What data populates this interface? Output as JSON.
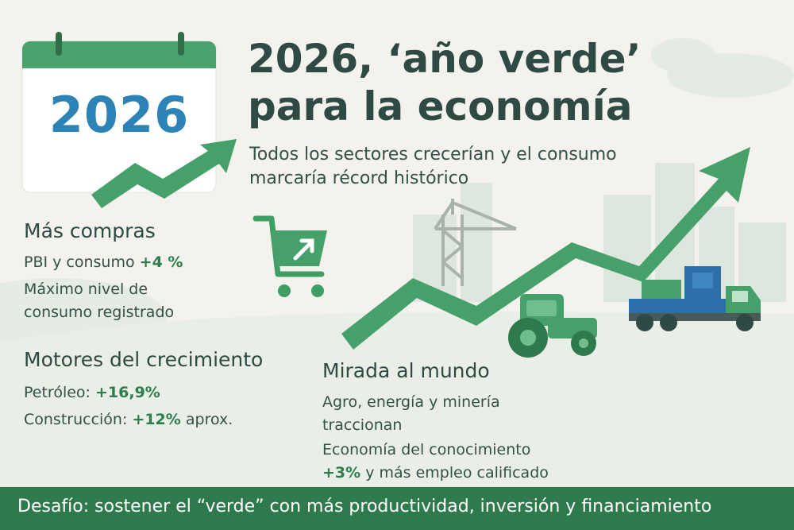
{
  "calendar": {
    "year": "2026"
  },
  "title_line1": "2026, ‘año verde’",
  "title_line2": "para la economía",
  "subtitle_line1": "Todos los sectores crecerían y el consumo",
  "subtitle_line2": "marcaría récord histórico",
  "compras": {
    "heading": "Más compras",
    "pbi_label": "PBI y consumo",
    "pbi_value": "+4 %",
    "record_line1": "Máximo nivel de",
    "record_line2": "consumo registrado"
  },
  "motores": {
    "heading": "Motores del crecimiento",
    "petroleo_label": "Petróleo:",
    "petroleo_value": "+16,9%",
    "construccion_label": "Construcción:",
    "construccion_value": "+12%",
    "construccion_suffix": "aprox."
  },
  "mundo": {
    "heading": "Mirada al mundo",
    "agro_line1": "Agro, energía y minería",
    "agro_line2": "traccionan",
    "conoc_line1": "Economía del conocimiento",
    "conoc_value": "+3%",
    "conoc_suffix": "y más empleo calificado"
  },
  "footer": {
    "text": "Desafío: sostener el “verde” con más productividad, inversión y financiamiento"
  },
  "icons": [
    "calendar-icon",
    "trend-arrow-icon",
    "shopping-cart-icon",
    "crane-icon",
    "tractor-icon",
    "truck-icon"
  ],
  "colors": {
    "green": "#3f9e64",
    "dark_green": "#2f7a4c",
    "blue": "#2d83b5",
    "text": "#2f4a44"
  }
}
